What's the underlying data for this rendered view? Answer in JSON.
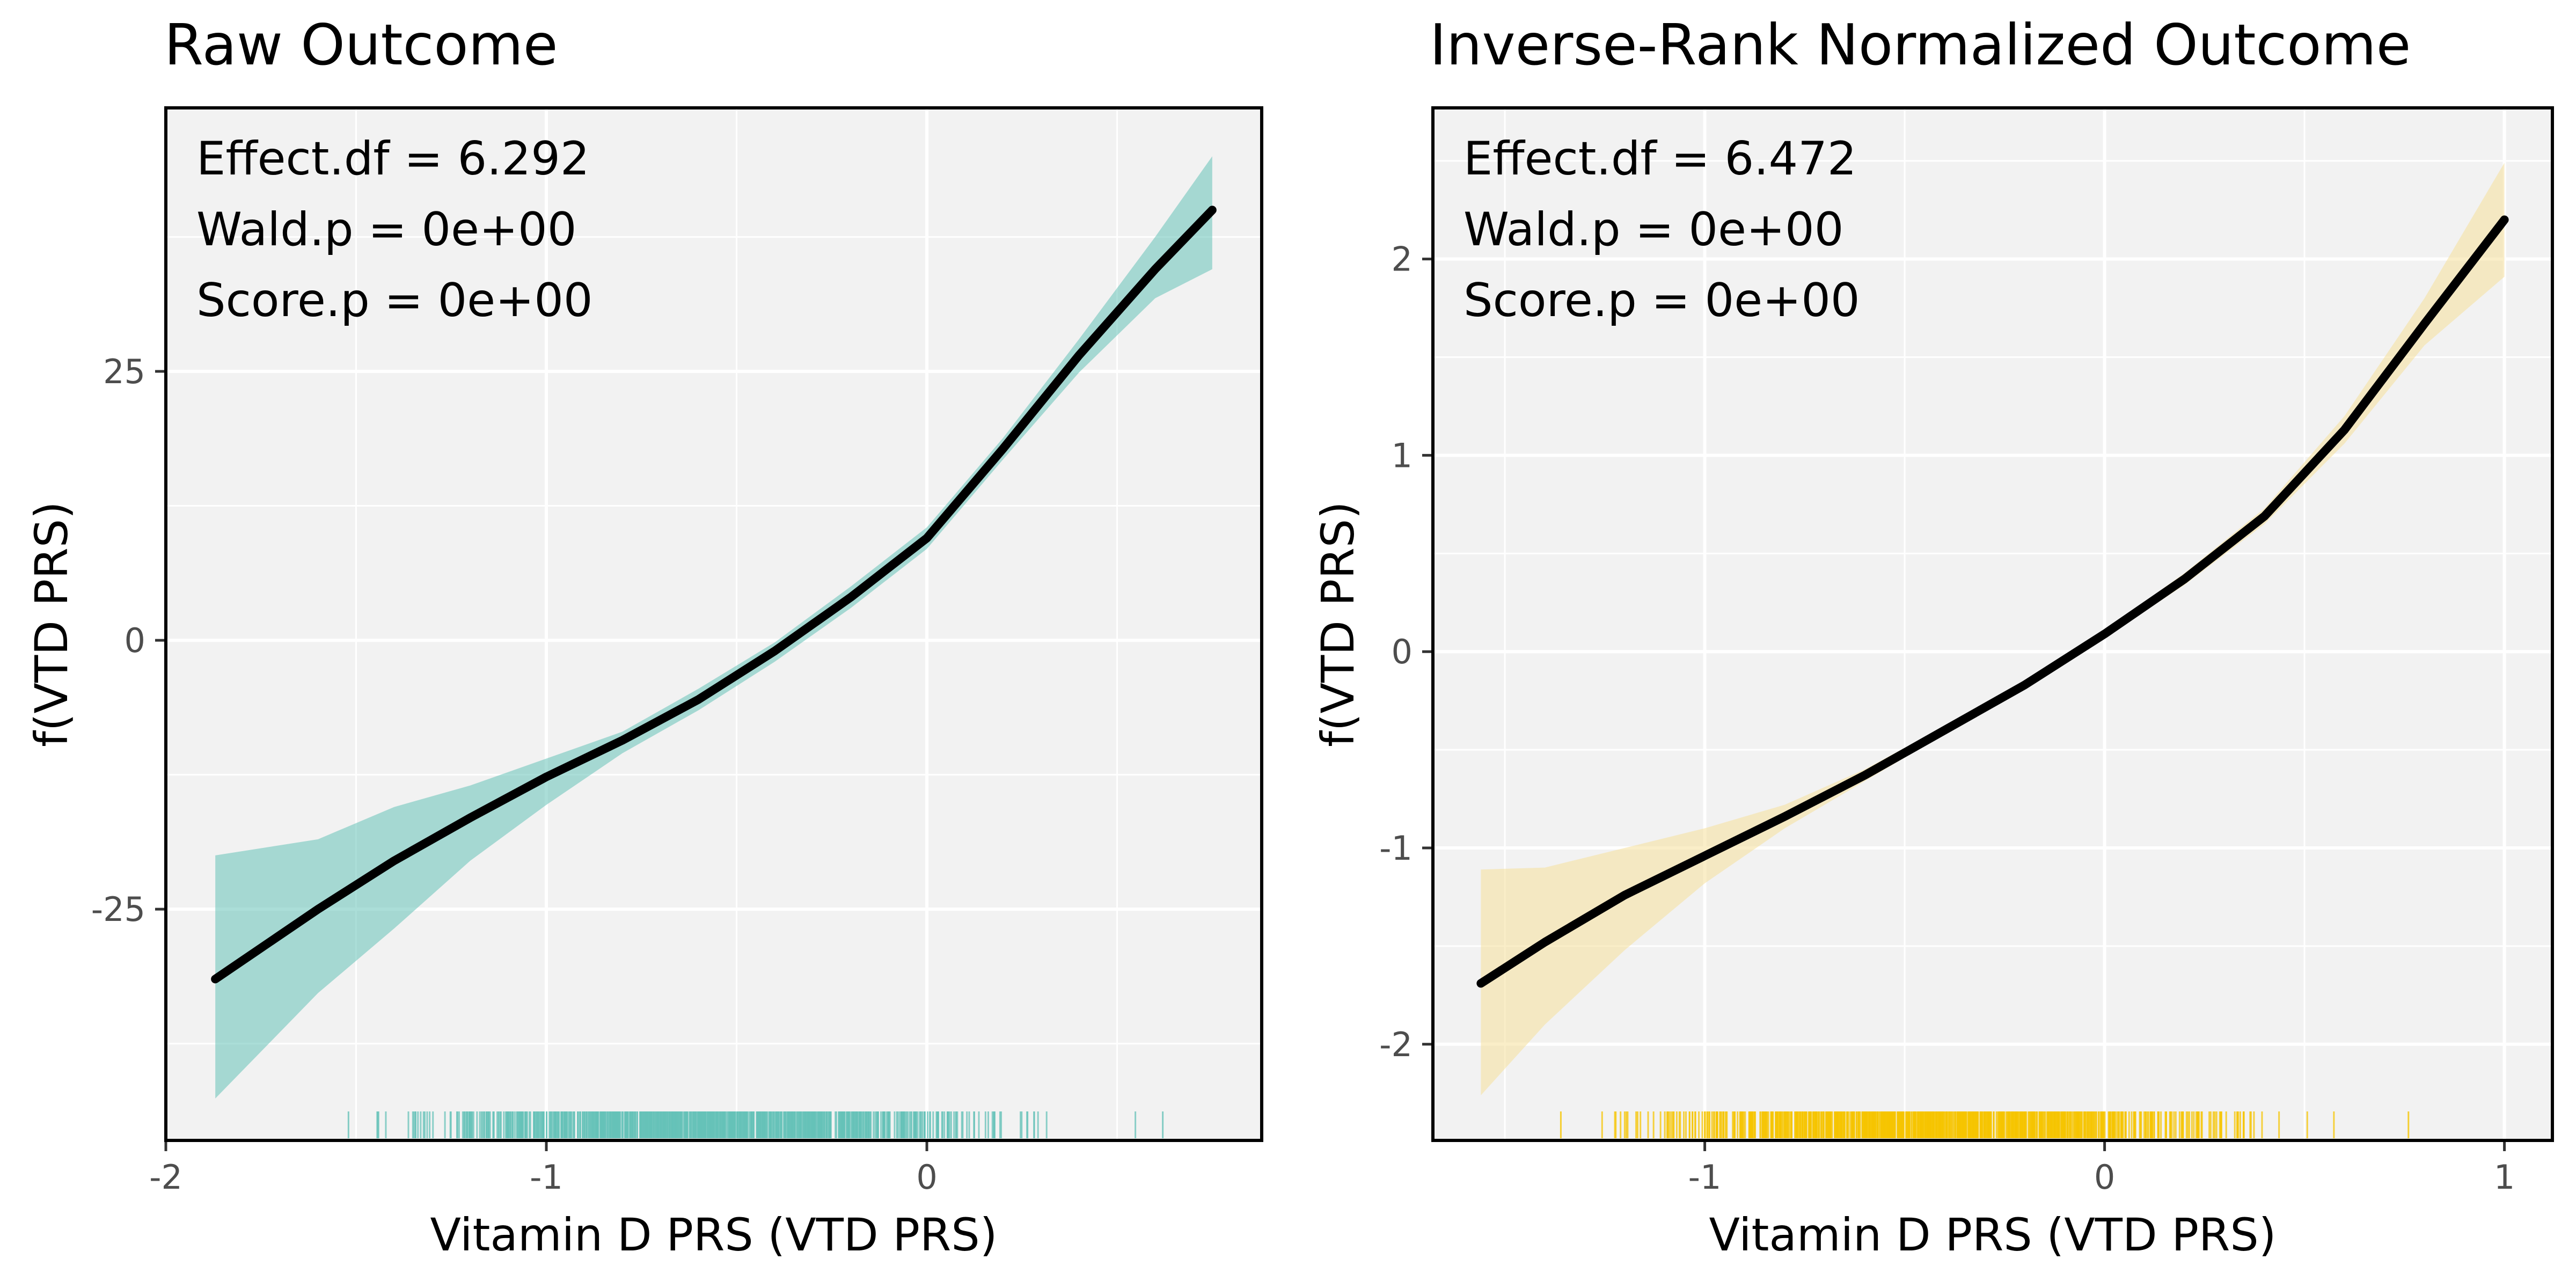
{
  "chart_data": [
    {
      "type": "line",
      "title": "Raw Outcome",
      "xlabel": "Vitamin D PRS (VTD PRS)",
      "ylabel": "f(VTD PRS)",
      "xlim": [
        -2.0,
        0.88
      ],
      "ylim": [
        -46.5,
        49.5
      ],
      "xticks": [
        -2,
        -1,
        0
      ],
      "xtick_labels": [
        "-2",
        "-1",
        "0"
      ],
      "yticks": [
        -25,
        0,
        25
      ],
      "ytick_labels": [
        "-25",
        "0",
        "25"
      ],
      "grid": true,
      "annotations": [
        "Effect.df = 6.292",
        "Wald.p = 0e+00",
        "Score.p = 0e+00"
      ],
      "band_color": "#66c2b8",
      "rug_color": "#66c2b8",
      "rug_range": [
        -1.52,
        0.62
      ],
      "curve": {
        "x": [
          -1.87,
          -1.6,
          -1.4,
          -1.2,
          -1.0,
          -0.8,
          -0.6,
          -0.4,
          -0.2,
          0.0,
          0.2,
          0.4,
          0.6,
          0.75
        ],
        "y": [
          -31.5,
          -25.0,
          -20.5,
          -16.5,
          -12.7,
          -9.3,
          -5.5,
          -1.0,
          4.0,
          9.5,
          17.8,
          26.5,
          34.5,
          40.0
        ]
      },
      "band": {
        "x": [
          -1.87,
          -1.6,
          -1.4,
          -1.2,
          -1.0,
          -0.8,
          -0.6,
          -0.4,
          -0.2,
          0.0,
          0.2,
          0.4,
          0.6,
          0.75
        ],
        "lower": [
          -42.6,
          -32.8,
          -26.8,
          -20.5,
          -15.3,
          -10.5,
          -6.5,
          -2.0,
          3.0,
          8.5,
          16.8,
          24.9,
          31.8,
          34.5
        ],
        "upper": [
          -20.0,
          -18.5,
          -15.5,
          -13.5,
          -11.0,
          -8.5,
          -4.5,
          -0.2,
          5.0,
          10.5,
          18.8,
          28.0,
          37.5,
          45.0
        ]
      }
    },
    {
      "type": "line",
      "title": "Inverse-Rank Normalized Outcome",
      "xlabel": "Vitamin D PRS (VTD PRS)",
      "ylabel": "f(VTD PRS)",
      "xlim": [
        -1.68,
        1.12
      ],
      "ylim": [
        -2.49,
        2.77
      ],
      "xticks": [
        -1,
        0,
        1
      ],
      "xtick_labels": [
        "-1",
        "0",
        "1"
      ],
      "yticks": [
        -2,
        -1,
        0,
        1,
        2
      ],
      "ytick_labels": [
        "-2",
        "-1",
        "0",
        "1",
        "2"
      ],
      "grid": true,
      "annotations": [
        "Effect.df = 6.472",
        "Wald.p = 0e+00",
        "Score.p = 0e+00"
      ],
      "band_color": "#f5e09a",
      "rug_color": "#f5c400",
      "rug_range": [
        -1.36,
        0.76
      ],
      "curve": {
        "x": [
          -1.56,
          -1.4,
          -1.2,
          -1.0,
          -0.8,
          -0.6,
          -0.4,
          -0.2,
          0.0,
          0.2,
          0.4,
          0.6,
          0.8,
          1.0
        ],
        "y": [
          -1.69,
          -1.48,
          -1.24,
          -1.04,
          -0.84,
          -0.63,
          -0.4,
          -0.17,
          0.09,
          0.37,
          0.69,
          1.13,
          1.67,
          2.2
        ]
      },
      "band": {
        "x": [
          -1.56,
          -1.4,
          -1.2,
          -1.0,
          -0.8,
          -0.6,
          -0.4,
          -0.2,
          0.0,
          0.2,
          0.4,
          0.6,
          0.8,
          1.0
        ],
        "lower": [
          -2.26,
          -1.9,
          -1.52,
          -1.18,
          -0.9,
          -0.66,
          -0.42,
          -0.19,
          0.07,
          0.34,
          0.65,
          1.06,
          1.56,
          1.91
        ],
        "upper": [
          -1.11,
          -1.1,
          -1.0,
          -0.9,
          -0.78,
          -0.6,
          -0.38,
          -0.15,
          0.11,
          0.4,
          0.73,
          1.2,
          1.8,
          2.49
        ]
      }
    }
  ]
}
